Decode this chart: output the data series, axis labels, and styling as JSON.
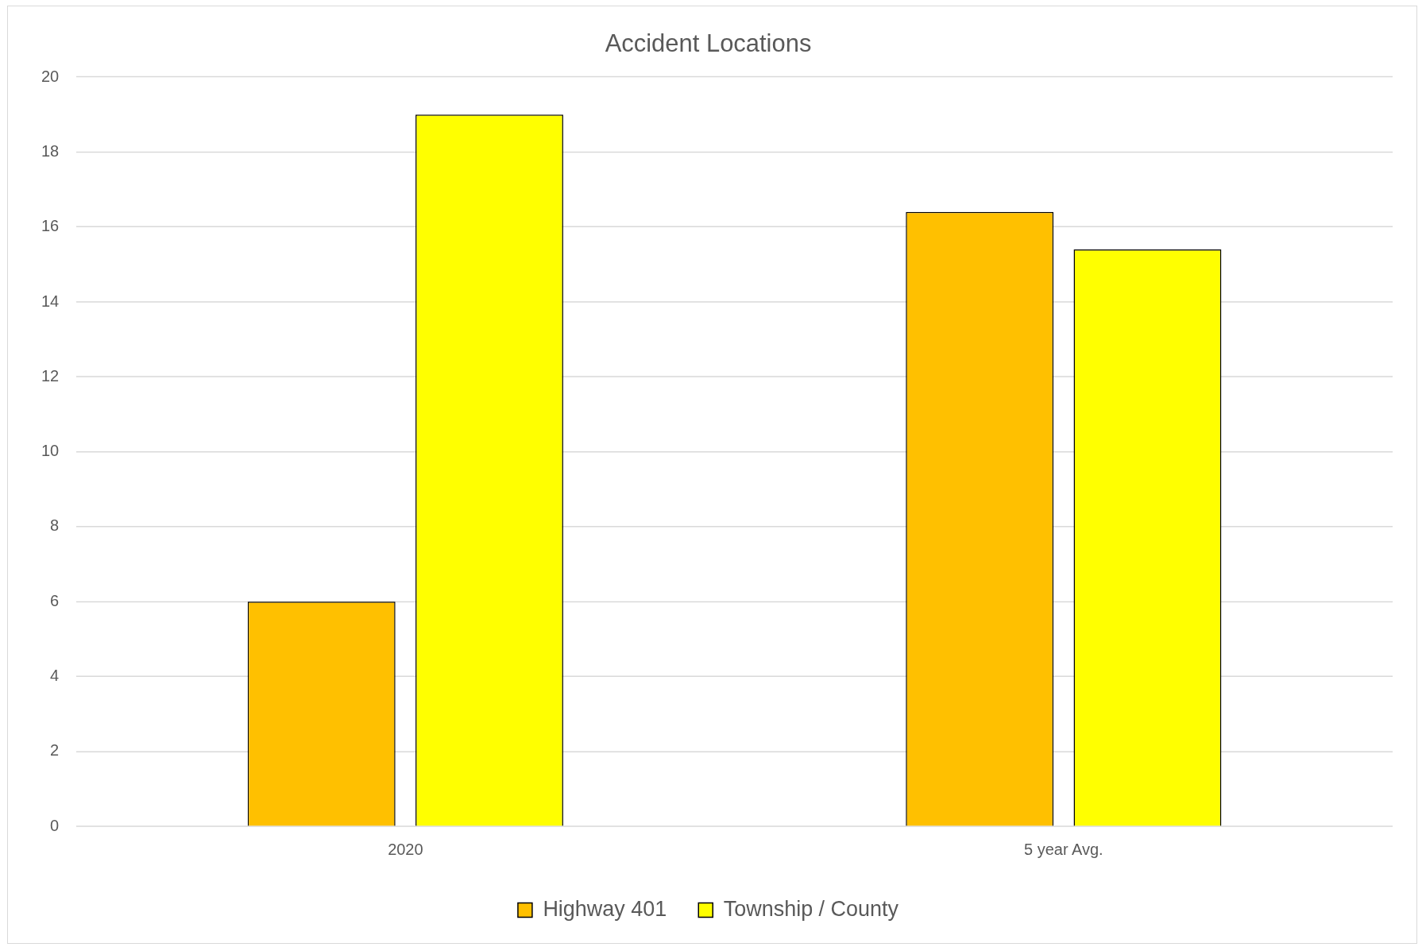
{
  "chart_data": {
    "type": "bar",
    "title": "Accident Locations",
    "categories": [
      "2020",
      "5 year Avg."
    ],
    "series": [
      {
        "name": "Highway 401",
        "color": "#ffc000",
        "values": [
          6,
          16.4
        ]
      },
      {
        "name": "Township / County",
        "color": "#ffff00",
        "values": [
          19,
          15.4
        ]
      }
    ],
    "ylim": [
      0,
      20
    ],
    "yticks": [
      0,
      2,
      4,
      6,
      8,
      10,
      12,
      14,
      16,
      18,
      20
    ],
    "grid": "y",
    "legend": "bottom"
  }
}
